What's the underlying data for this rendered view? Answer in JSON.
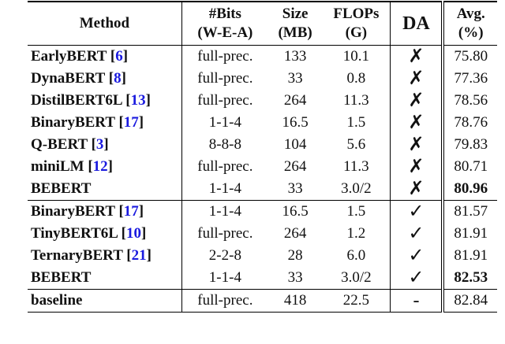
{
  "table": {
    "citation_brackets": [
      "[",
      "]"
    ],
    "header": [
      [
        "Method"
      ],
      [
        "#Bits",
        "(W-E-A)"
      ],
      [
        "Size",
        "(MB)"
      ],
      [
        "FLOPs",
        "(G)"
      ],
      [
        "DA"
      ],
      [
        "Avg.",
        "(%)"
      ]
    ],
    "groups": [
      [
        {
          "method": "EarlyBERT",
          "ref": "6",
          "bits": "full-prec.",
          "size": "133",
          "flops": "10.1",
          "da": "✗",
          "avg": "75.80"
        },
        {
          "method": "DynaBERT",
          "ref": "8",
          "bits": "full-prec.",
          "size": "33",
          "flops": "0.8",
          "da": "✗",
          "avg": "77.36"
        },
        {
          "method": "DistilBERT6L",
          "ref": "13",
          "bits": "full-prec.",
          "size": "264",
          "flops": "11.3",
          "da": "✗",
          "avg": "78.56"
        },
        {
          "method": "BinaryBERT",
          "ref": "17",
          "bits": "1-1-4",
          "size": "16.5",
          "flops": "1.5",
          "da": "✗",
          "avg": "78.76"
        },
        {
          "method": "Q-BERT",
          "ref": "3",
          "bits": "8-8-8",
          "size": "104",
          "flops": "5.6",
          "da": "✗",
          "avg": "79.83"
        },
        {
          "method": "miniLM",
          "ref": "12",
          "bits": "full-prec.",
          "size": "264",
          "flops": "11.3",
          "da": "✗",
          "avg": "80.71"
        },
        {
          "method": "BEBERT",
          "bits": "1-1-4",
          "size": "33",
          "flops": "3.0/2",
          "da": "✗",
          "avg": "80.96",
          "best": true
        }
      ],
      [
        {
          "method": "BinaryBERT",
          "ref": "17",
          "bits": "1-1-4",
          "size": "16.5",
          "flops": "1.5",
          "da": "✓",
          "avg": "81.57"
        },
        {
          "method": "TinyBERT6L",
          "ref": "10",
          "bits": "full-prec.",
          "size": "264",
          "flops": "1.2",
          "da": "✓",
          "avg": "81.91"
        },
        {
          "method": "TernaryBERT",
          "ref": "21",
          "bits": "2-2-8",
          "size": "28",
          "flops": "6.0",
          "da": "✓",
          "avg": "81.91"
        },
        {
          "method": "BEBERT",
          "bits": "1-1-4",
          "size": "33",
          "flops": "3.0/2",
          "da": "✓",
          "avg": "82.53",
          "best": true
        }
      ],
      [
        {
          "method": "baseline",
          "bits": "full-prec.",
          "size": "418",
          "flops": "22.5",
          "da": "-",
          "avg": "82.84"
        }
      ]
    ]
  }
}
